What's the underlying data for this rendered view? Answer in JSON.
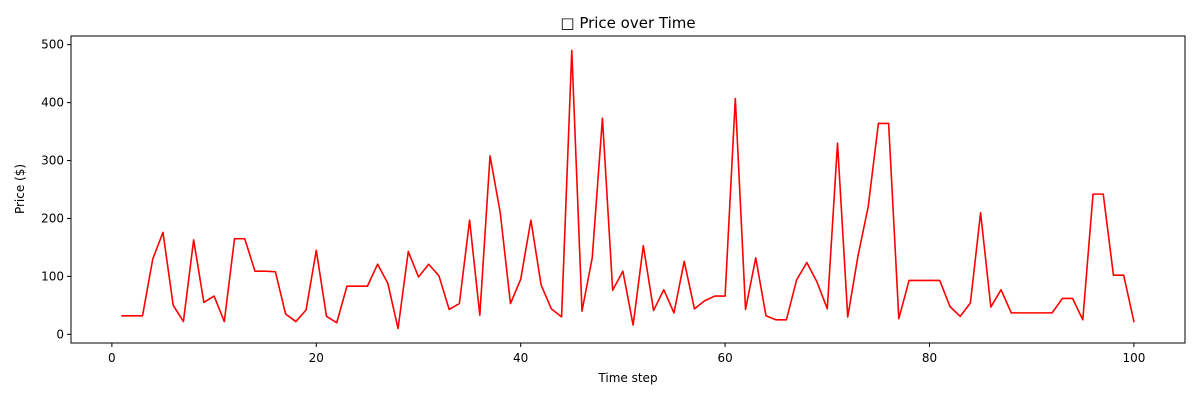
{
  "chart_data": {
    "type": "line",
    "title": "□ Price over Time",
    "xlabel": "Time step",
    "ylabel": "Price ($)",
    "xlim": [
      -4,
      105
    ],
    "ylim": [
      -15,
      515
    ],
    "xticks": [
      0,
      20,
      40,
      60,
      80,
      100
    ],
    "yticks": [
      0,
      100,
      200,
      300,
      400,
      500
    ],
    "xtick_labels": [
      "0",
      "20",
      "40",
      "60",
      "80",
      "100"
    ],
    "ytick_labels": [
      "0",
      "100",
      "200",
      "300",
      "400",
      "500"
    ],
    "grid": false,
    "legend": "none",
    "series": [
      {
        "color": "#ff0000",
        "x": [
          1,
          2,
          3,
          4,
          5,
          6,
          7,
          8,
          9,
          10,
          11,
          12,
          13,
          14,
          15,
          16,
          17,
          18,
          19,
          20,
          21,
          22,
          23,
          24,
          25,
          26,
          27,
          28,
          29,
          30,
          31,
          32,
          33,
          34,
          35,
          36,
          37,
          38,
          39,
          40,
          41,
          42,
          43,
          44,
          45,
          46,
          47,
          48,
          49,
          50,
          51,
          52,
          53,
          54,
          55,
          56,
          57,
          58,
          59,
          60,
          61,
          62,
          63,
          64,
          65,
          66,
          67,
          68,
          69,
          70,
          71,
          72,
          73,
          74,
          75,
          76,
          77,
          78,
          79,
          80,
          81,
          82,
          83,
          84,
          85,
          86,
          87,
          88,
          89,
          90,
          91,
          92,
          93,
          94,
          95,
          96,
          97,
          98,
          99,
          100
        ],
        "y": [
          32,
          32,
          32,
          130,
          176,
          50,
          22,
          163,
          55,
          66,
          22,
          165,
          165,
          109,
          109,
          108,
          35,
          22,
          42,
          145,
          31,
          20,
          83,
          83,
          83,
          121,
          88,
          10,
          143,
          99,
          121,
          101,
          43,
          53,
          197,
          33,
          308,
          210,
          53,
          95,
          197,
          85,
          44,
          30,
          490,
          40,
          132,
          373,
          76,
          109,
          16,
          153,
          41,
          77,
          37,
          126,
          44,
          58,
          66,
          66,
          407,
          43,
          132,
          32,
          25,
          25,
          94,
          124,
          90,
          44,
          330,
          30,
          135,
          220,
          364,
          364,
          27,
          93,
          93,
          93,
          93,
          48,
          31,
          54,
          210,
          47,
          77,
          37,
          37,
          37,
          37,
          37,
          62,
          62,
          25,
          242,
          242,
          102,
          102,
          22
        ]
      }
    ]
  }
}
